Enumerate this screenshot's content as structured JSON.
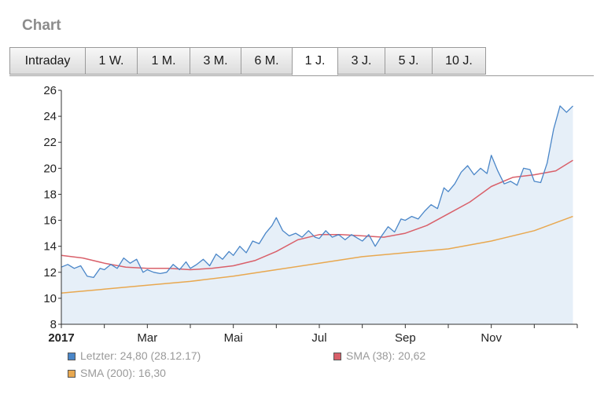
{
  "header": {
    "title": "Chart"
  },
  "tabs": [
    {
      "label": "Intraday",
      "active": false
    },
    {
      "label": "1 W.",
      "active": false
    },
    {
      "label": "1 M.",
      "active": false
    },
    {
      "label": "3 M.",
      "active": false
    },
    {
      "label": "6 M.",
      "active": false
    },
    {
      "label": "1 J.",
      "active": true
    },
    {
      "label": "3 J.",
      "active": false
    },
    {
      "label": "5 J.",
      "active": false
    },
    {
      "label": "10 J.",
      "active": false
    }
  ],
  "legend": {
    "last": "Letzter: 24,80 (28.12.17)",
    "sma38": "SMA (38): 20,62",
    "sma200": "SMA (200): 16,30"
  },
  "colors": {
    "price": "#4a86c8",
    "price_fill": "#e6eff8",
    "sma38": "#d9606a",
    "sma200": "#e8a850",
    "axis": "#333333"
  },
  "chart_data": {
    "type": "line",
    "x_ticks": [
      "2017",
      "Mar",
      "Mai",
      "Jul",
      "Sep",
      "Nov"
    ],
    "x_tick_months": [
      0,
      2,
      4,
      6,
      8,
      10
    ],
    "xlim": [
      0,
      12
    ],
    "ylim": [
      8,
      26
    ],
    "y_ticks": [
      8,
      10,
      12,
      14,
      16,
      18,
      20,
      22,
      24,
      26
    ],
    "series": [
      {
        "name": "Letzter",
        "x": [
          0.0,
          0.15,
          0.3,
          0.45,
          0.6,
          0.75,
          0.9,
          1.0,
          1.15,
          1.3,
          1.45,
          1.6,
          1.75,
          1.9,
          2.0,
          2.15,
          2.3,
          2.45,
          2.6,
          2.75,
          2.9,
          3.0,
          3.15,
          3.3,
          3.45,
          3.6,
          3.75,
          3.9,
          4.0,
          4.15,
          4.3,
          4.45,
          4.6,
          4.75,
          4.9,
          5.0,
          5.15,
          5.3,
          5.45,
          5.6,
          5.75,
          5.9,
          6.0,
          6.15,
          6.3,
          6.45,
          6.6,
          6.75,
          6.9,
          7.0,
          7.15,
          7.3,
          7.45,
          7.6,
          7.75,
          7.9,
          8.0,
          8.15,
          8.3,
          8.45,
          8.6,
          8.75,
          8.9,
          9.0,
          9.15,
          9.3,
          9.45,
          9.6,
          9.75,
          9.9,
          10.0,
          10.15,
          10.3,
          10.45,
          10.6,
          10.75,
          10.9,
          11.0,
          11.15,
          11.3,
          11.45,
          11.6,
          11.75,
          11.9
        ],
        "y": [
          12.4,
          12.6,
          12.3,
          12.5,
          11.7,
          11.6,
          12.3,
          12.2,
          12.6,
          12.3,
          13.1,
          12.7,
          13.0,
          12.0,
          12.2,
          12.0,
          11.9,
          12.0,
          12.6,
          12.2,
          12.8,
          12.3,
          12.6,
          13.0,
          12.5,
          13.4,
          13.0,
          13.6,
          13.3,
          14.0,
          13.5,
          14.4,
          14.2,
          15.0,
          15.6,
          16.2,
          15.2,
          14.8,
          15.0,
          14.7,
          15.2,
          14.7,
          14.6,
          15.2,
          14.7,
          14.9,
          14.5,
          14.9,
          14.6,
          14.4,
          14.9,
          14.0,
          14.8,
          15.5,
          15.1,
          16.1,
          16.0,
          16.3,
          16.1,
          16.7,
          17.2,
          16.9,
          18.5,
          18.2,
          18.8,
          19.7,
          20.2,
          19.5,
          20.0,
          19.6,
          21.0,
          19.8,
          18.8,
          19.0,
          18.7,
          20.0,
          19.9,
          19.0,
          18.9,
          20.4,
          23.0,
          24.8,
          24.3,
          24.8
        ]
      },
      {
        "name": "SMA (38)",
        "x": [
          0,
          0.5,
          1.0,
          1.5,
          2.0,
          2.5,
          3.0,
          3.5,
          4.0,
          4.5,
          5.0,
          5.5,
          6.0,
          6.5,
          7.0,
          7.5,
          8.0,
          8.5,
          9.0,
          9.5,
          10.0,
          10.5,
          11.0,
          11.5,
          11.9
        ],
        "y": [
          13.3,
          13.1,
          12.7,
          12.4,
          12.3,
          12.3,
          12.2,
          12.3,
          12.5,
          12.9,
          13.6,
          14.5,
          14.9,
          14.9,
          14.8,
          14.7,
          15.0,
          15.6,
          16.5,
          17.4,
          18.6,
          19.3,
          19.5,
          19.8,
          20.62
        ]
      },
      {
        "name": "SMA (200)",
        "x": [
          0,
          1,
          2,
          3,
          4,
          5,
          6,
          7,
          8,
          9,
          10,
          11,
          11.9
        ],
        "y": [
          10.4,
          10.7,
          11.0,
          11.3,
          11.7,
          12.2,
          12.7,
          13.2,
          13.5,
          13.8,
          14.4,
          15.2,
          16.3
        ]
      }
    ]
  }
}
